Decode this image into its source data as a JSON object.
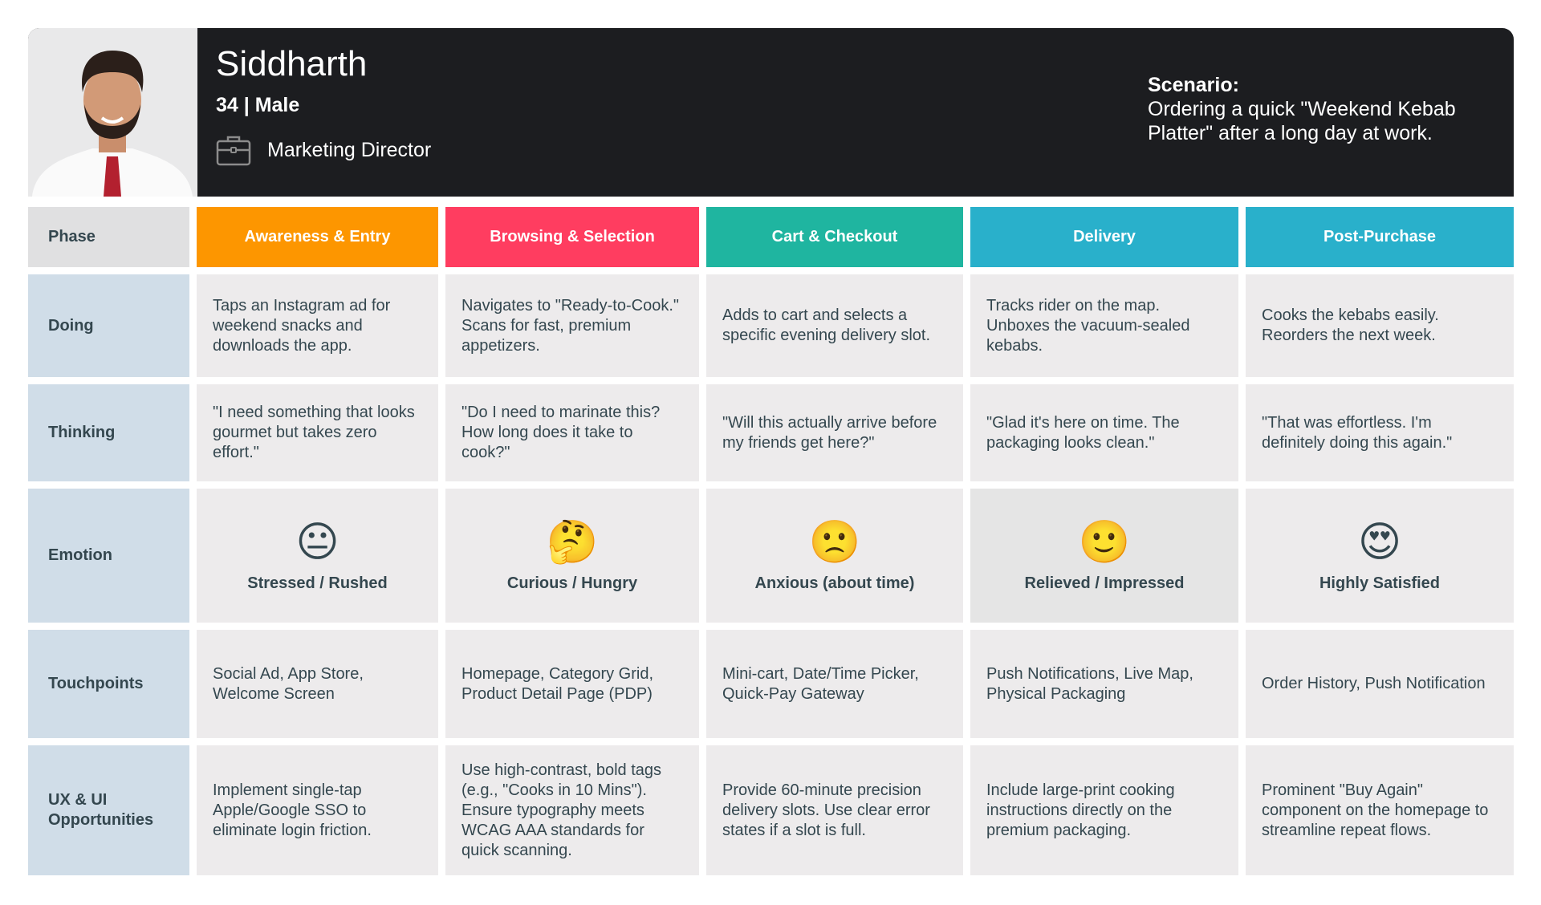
{
  "persona": {
    "name": "Siddharth",
    "age_gender": "34 | Male",
    "job": "Marketing Director",
    "job_icon": "briefcase-icon",
    "scenario_label": "Scenario:",
    "scenario": "Ordering a quick \"Weekend Kebab Platter\" after a long day at work."
  },
  "row_labels": [
    "Phase",
    "Doing",
    "Thinking",
    "Emotion",
    "Touchpoints",
    "UX & UI Opportunities"
  ],
  "phases": [
    {
      "label": "Awareness & Entry",
      "color": "#fd9600"
    },
    {
      "label": "Browsing & Selection",
      "color": "#ff3d60"
    },
    {
      "label": "Cart & Checkout",
      "color": "#1fb5a0"
    },
    {
      "label": "Delivery",
      "color": "#29b0cb"
    },
    {
      "label": "Post-Purchase",
      "color": "#29b0cb"
    }
  ],
  "doing": [
    "Taps an Instagram ad for weekend snacks and downloads the app.",
    "Navigates to \"Ready-to-Cook.\" Scans for fast, premium appetizers.",
    "Adds to cart and selects a specific evening delivery slot.",
    "Tracks rider on the map. Unboxes the vacuum-sealed kebabs.",
    "Cooks the kebabs easily. Reorders the next week."
  ],
  "thinking": [
    "\"I need something that looks gourmet but takes zero effort.\"",
    "\"Do I need to marinate this? How long does it take to cook?\"",
    "\"Will this actually arrive before my friends get here?\"",
    "\"Glad it's here on time. The packaging looks clean.\"",
    "\"That was effortless. I'm definitely doing this again.\""
  ],
  "emotion": [
    {
      "emoji": "😐",
      "label": "Stressed / Rushed"
    },
    {
      "emoji": "🤔",
      "label": "Curious / Hungry"
    },
    {
      "emoji": "🙁",
      "label": "Anxious (about time)"
    },
    {
      "emoji": "🙂",
      "label": "Relieved / Impressed"
    },
    {
      "emoji": "😍",
      "label": "Highly Satisfied"
    }
  ],
  "touchpoints": [
    "Social Ad, App Store, Welcome Screen",
    "Homepage, Category Grid, Product Detail Page (PDP)",
    "Mini-cart, Date/Time Picker, Quick-Pay Gateway",
    "Push Notifications, Live Map, Physical Packaging",
    "Order History, Push Notification"
  ],
  "opportunities": [
    "Implement single-tap Apple/Google SSO to eliminate login friction.",
    "Use high-contrast, bold tags (e.g., \"Cooks in 10 Mins\"). Ensure typography meets WCAG AAA standards for quick scanning.",
    "Provide 60-minute precision delivery slots. Use clear error states if a slot is full.",
    "Include large-print cooking instructions directly on the premium packaging.",
    "Prominent \"Buy Again\" component on the homepage to streamline repeat flows."
  ]
}
